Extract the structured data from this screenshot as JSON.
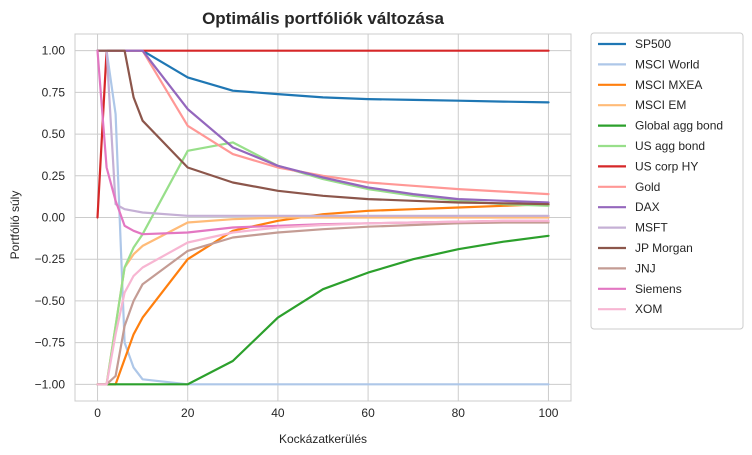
{
  "chart_data": {
    "type": "line",
    "title": "Optimális portfóliók változása",
    "xlabel": "Kockázatkerülés",
    "ylabel": "Portfólió súly",
    "xlim": [
      -5,
      105
    ],
    "ylim": [
      -1.1,
      1.1
    ],
    "xticks": [
      0,
      20,
      40,
      60,
      80,
      100
    ],
    "xtick_labels": [
      "0",
      "20",
      "40",
      "60",
      "80",
      "100"
    ],
    "yticks": [
      1.0,
      0.75,
      0.5,
      0.25,
      0.0,
      -0.25,
      -0.5,
      -0.75,
      -1.0
    ],
    "ytick_labels": [
      "1.00",
      "0.75",
      "0.50",
      "0.25",
      "0.00",
      "−0.25",
      "−0.50",
      "−0.75",
      "−1.00"
    ],
    "grid": true,
    "legend_position": "outside-right",
    "x": [
      0,
      2,
      4,
      6,
      8,
      10,
      20,
      30,
      40,
      50,
      60,
      70,
      80,
      90,
      100
    ],
    "series": [
      {
        "name": "SP500",
        "color": "#1f77b4",
        "values": [
          1.0,
          1.0,
          1.0,
          1.0,
          1.0,
          1.0,
          0.84,
          0.76,
          0.74,
          0.72,
          0.71,
          0.705,
          0.7,
          0.695,
          0.69
        ]
      },
      {
        "name": "MSCI World",
        "color": "#aec7e8",
        "values": [
          1.0,
          1.0,
          0.62,
          -0.75,
          -0.9,
          -0.97,
          -1.0,
          -1.0,
          -1.0,
          -1.0,
          -1.0,
          -1.0,
          -1.0,
          -1.0,
          -1.0
        ]
      },
      {
        "name": "MSCI MXEA",
        "color": "#ff7f0e",
        "values": [
          -1.0,
          -1.0,
          -1.0,
          -0.85,
          -0.7,
          -0.6,
          -0.25,
          -0.08,
          -0.02,
          0.02,
          0.04,
          0.05,
          0.06,
          0.07,
          0.08
        ]
      },
      {
        "name": "MSCI EM",
        "color": "#ffbb78",
        "values": [
          -1.0,
          -1.0,
          -0.65,
          -0.3,
          -0.22,
          -0.17,
          -0.03,
          -0.01,
          0.0,
          0.0,
          0.0,
          0.0,
          0.0,
          0.0,
          0.0
        ]
      },
      {
        "name": "Global agg bond",
        "color": "#2ca02c",
        "values": [
          -1.0,
          -1.0,
          -1.0,
          -1.0,
          -1.0,
          -1.0,
          -1.0,
          -0.86,
          -0.6,
          -0.43,
          -0.33,
          -0.25,
          -0.19,
          -0.145,
          -0.11
        ]
      },
      {
        "name": "US agg bond",
        "color": "#98df8a",
        "values": [
          -1.0,
          -1.0,
          -0.65,
          -0.3,
          -0.18,
          -0.1,
          0.4,
          0.45,
          0.31,
          0.23,
          0.17,
          0.13,
          0.1,
          0.08,
          0.07
        ]
      },
      {
        "name": "US corp HY",
        "color": "#d62728",
        "values": [
          0.0,
          1.0,
          1.0,
          1.0,
          1.0,
          1.0,
          1.0,
          1.0,
          1.0,
          1.0,
          1.0,
          1.0,
          1.0,
          1.0,
          1.0
        ]
      },
      {
        "name": "Gold",
        "color": "#ff9896",
        "values": [
          1.0,
          1.0,
          1.0,
          1.0,
          1.0,
          1.0,
          0.55,
          0.38,
          0.3,
          0.25,
          0.21,
          0.19,
          0.17,
          0.155,
          0.14
        ]
      },
      {
        "name": "DAX",
        "color": "#9467bd",
        "values": [
          1.0,
          1.0,
          1.0,
          1.0,
          1.0,
          1.0,
          0.65,
          0.42,
          0.31,
          0.24,
          0.18,
          0.14,
          0.11,
          0.1,
          0.09
        ]
      },
      {
        "name": "MSFT",
        "color": "#c5b0d5",
        "values": [
          1.0,
          1.0,
          0.08,
          0.05,
          0.04,
          0.03,
          0.01,
          0.01,
          0.01,
          0.01,
          0.01,
          0.01,
          0.01,
          0.01,
          0.01
        ]
      },
      {
        "name": "JP Morgan",
        "color": "#8c564b",
        "values": [
          1.0,
          1.0,
          1.0,
          1.0,
          0.72,
          0.58,
          0.3,
          0.21,
          0.16,
          0.13,
          0.11,
          0.1,
          0.09,
          0.085,
          0.08
        ]
      },
      {
        "name": "JNJ",
        "color": "#c49c94",
        "values": [
          -1.0,
          -1.0,
          -0.95,
          -0.65,
          -0.5,
          -0.4,
          -0.2,
          -0.12,
          -0.09,
          -0.07,
          -0.055,
          -0.045,
          -0.035,
          -0.03,
          -0.03
        ]
      },
      {
        "name": "Siemens",
        "color": "#e377c2",
        "values": [
          1.0,
          0.3,
          0.1,
          -0.05,
          -0.08,
          -0.1,
          -0.09,
          -0.06,
          -0.05,
          -0.04,
          -0.035,
          -0.03,
          -0.025,
          -0.02,
          -0.02
        ]
      },
      {
        "name": "XOM",
        "color": "#f7b6d2",
        "values": [
          -1.0,
          -1.0,
          -0.7,
          -0.45,
          -0.35,
          -0.3,
          -0.15,
          -0.09,
          -0.06,
          -0.045,
          -0.035,
          -0.03,
          -0.025,
          -0.02,
          -0.02
        ]
      }
    ]
  }
}
